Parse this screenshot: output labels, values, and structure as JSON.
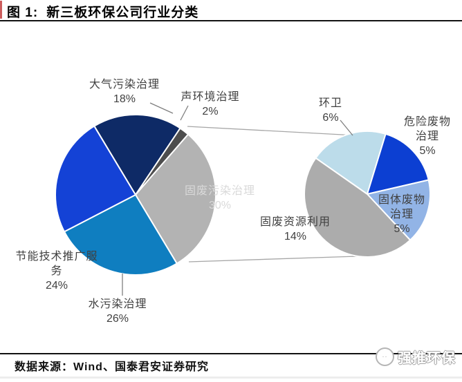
{
  "header": {
    "title_prefix": "图 1:",
    "title": "新三板环保公司行业分类"
  },
  "footer": {
    "source": "数据来源：Wind、国泰君安证券研究"
  },
  "watermark": {
    "text": "强推环保",
    "logo": "panda-badge-icon"
  },
  "colors": {
    "title_rule": "#111111",
    "accent_bar": "#cc5c5c",
    "label_text": "#404040",
    "inside_label_text": "#d9d9d9",
    "leader_line": "#7f7f7f",
    "connector_line": "#a6a6a6"
  },
  "chart_data": {
    "type": "pie",
    "variant": "pie-of-pie",
    "title": "新三板环保公司行业分类",
    "unit": "%",
    "legend": "none",
    "main_pie": {
      "start_angle_deg": -31,
      "slices": [
        {
          "label": "大气污染治理",
          "value": 18,
          "color": "#0e2a66"
        },
        {
          "label": "声环境治理",
          "value": 2,
          "color": "#4d4d4d"
        },
        {
          "label": "固废污染治理",
          "value": 30,
          "color": "#b3b3b3"
        },
        {
          "label": "水污染治理",
          "value": 26,
          "color": "#0f7ec0"
        },
        {
          "label": "节能技术推广服务",
          "value": 24,
          "color": "#1442d6"
        }
      ]
    },
    "secondary_pie": {
      "parent_slice": "固废污染治理",
      "start_angle_deg": -55,
      "slices": [
        {
          "label": "环卫",
          "value": 6,
          "color": "#bcdcea"
        },
        {
          "label": "危险废物治理",
          "value": 5,
          "color": "#0c3fd2"
        },
        {
          "label": "固体废物治理",
          "value": 5,
          "color": "#92b4e6"
        },
        {
          "label": "固废资源利用",
          "value": 14,
          "color": "#acacac"
        }
      ]
    }
  }
}
